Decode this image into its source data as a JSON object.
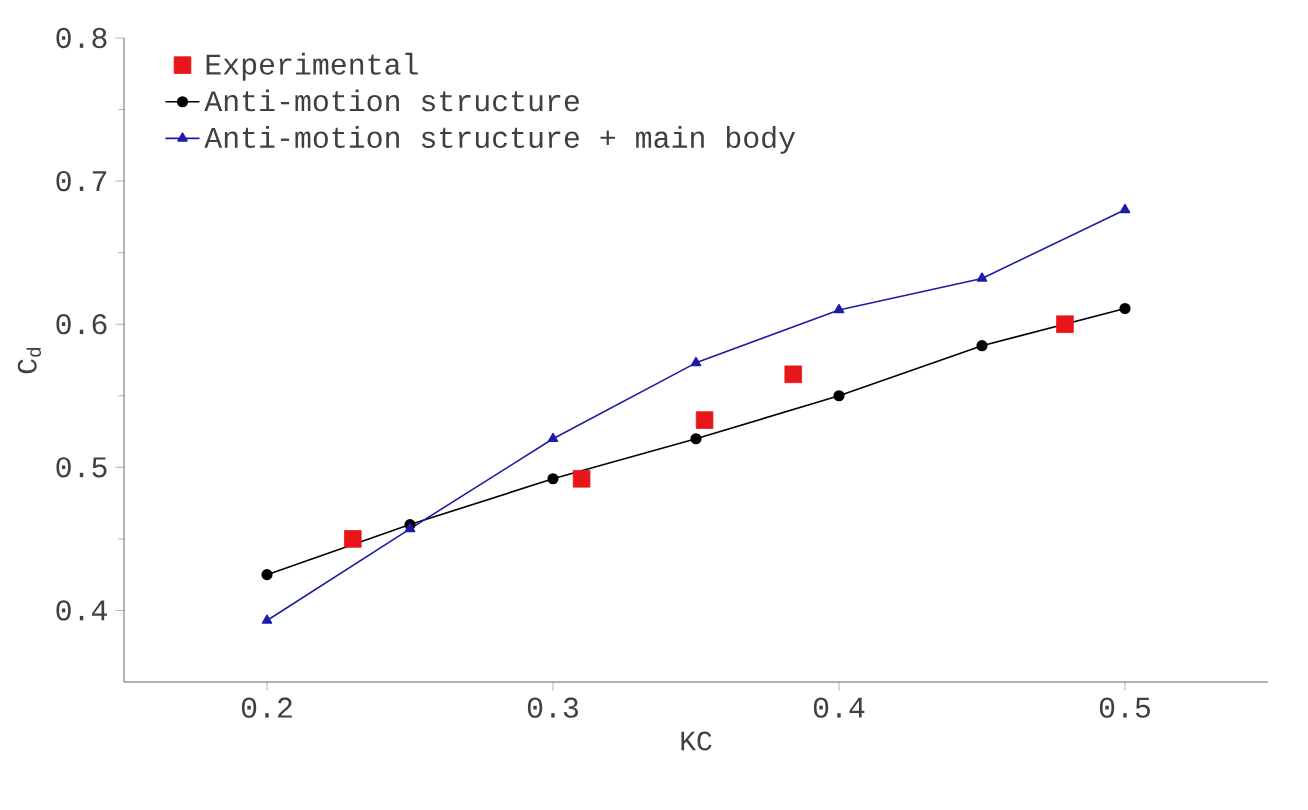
{
  "chart_data": {
    "type": "line",
    "xlabel": "KC",
    "ylabel": "C$_{d}$",
    "xlim": [
      0.15,
      0.55
    ],
    "ylim": [
      0.35,
      0.8
    ],
    "xticks": [
      {
        "value": 0.2,
        "label": "0.2"
      },
      {
        "value": 0.3,
        "label": "0.3"
      },
      {
        "value": 0.4,
        "label": "0.4"
      },
      {
        "value": 0.5,
        "label": "0.5"
      }
    ],
    "yticks": [
      {
        "value": 0.4,
        "label": "0.4"
      },
      {
        "value": 0.5,
        "label": "0.5"
      },
      {
        "value": 0.6,
        "label": "0.6"
      },
      {
        "value": 0.7,
        "label": "0.7"
      },
      {
        "value": 0.8,
        "label": "0.8"
      }
    ],
    "grid": false,
    "legend": "top left",
    "series": [
      {
        "name": "Experimental",
        "type": "scatter",
        "marker": "square",
        "color": "#e8161b",
        "x": [
          0.23,
          0.31,
          0.353,
          0.384,
          0.479
        ],
        "values": [
          0.45,
          0.492,
          0.533,
          0.565,
          0.6
        ]
      },
      {
        "name": "Anti-motion structure",
        "marker": "circle",
        "color": "#000000",
        "x": [
          0.2,
          0.25,
          0.3,
          0.35,
          0.4,
          0.45,
          0.5
        ],
        "values": [
          0.425,
          0.46,
          0.492,
          0.52,
          0.55,
          0.585,
          0.611
        ]
      },
      {
        "name": "Anti-motion structure + main body",
        "marker": "triangle",
        "color": "#1c1ca8",
        "x": [
          0.2,
          0.25,
          0.3,
          0.35,
          0.4,
          0.45,
          0.5
        ],
        "values": [
          0.393,
          0.457,
          0.52,
          0.573,
          0.61,
          0.632,
          0.68
        ]
      }
    ]
  }
}
